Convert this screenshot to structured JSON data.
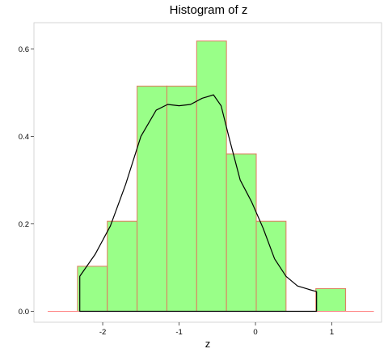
{
  "chart_data": {
    "type": "bar",
    "title": "Histogram of z",
    "xlabel": "z",
    "ylabel": "",
    "xlim": [
      -2.9,
      1.65
    ],
    "ylim": [
      -0.025,
      0.66
    ],
    "x_ticks": [
      -2,
      -1,
      0,
      1
    ],
    "y_ticks": [
      0.0,
      0.2,
      0.4,
      0.6
    ],
    "x_tick_labels": [
      "-2",
      "-1",
      "0",
      "1"
    ],
    "y_tick_labels": [
      "0.0",
      "0.2",
      "0.4",
      "0.6"
    ],
    "grid": false,
    "legend": "none",
    "colors": {
      "bar_fill": "#99ff88",
      "bar_outline": "#e07a5f",
      "baseline": "#ff8080",
      "density": "#000000",
      "panel_border": "#cccccc"
    },
    "bins": [
      {
        "x0": -2.33,
        "x1": -1.94,
        "density": 0.103
      },
      {
        "x0": -1.94,
        "x1": -1.55,
        "density": 0.206
      },
      {
        "x0": -1.55,
        "x1": -1.16,
        "density": 0.515
      },
      {
        "x0": -1.16,
        "x1": -0.77,
        "density": 0.515
      },
      {
        "x0": -0.77,
        "x1": -0.38,
        "density": 0.618
      },
      {
        "x0": -0.38,
        "x1": 0.01,
        "density": 0.36
      },
      {
        "x0": 0.01,
        "x1": 0.4,
        "density": 0.206
      },
      {
        "x0": 0.4,
        "x1": 0.79,
        "density": 0.0
      },
      {
        "x0": 0.79,
        "x1": 1.18,
        "density": 0.052
      }
    ],
    "baseline_range": [
      -2.72,
      1.55
    ],
    "density_curve": {
      "x": [
        -2.3,
        -2.1,
        -1.9,
        -1.7,
        -1.5,
        -1.3,
        -1.15,
        -1.0,
        -0.85,
        -0.7,
        -0.55,
        -0.45,
        -0.35,
        -0.2,
        -0.05,
        0.1,
        0.25,
        0.4,
        0.55,
        0.7,
        0.8
      ],
      "y": [
        0.08,
        0.13,
        0.195,
        0.29,
        0.4,
        0.46,
        0.473,
        0.47,
        0.473,
        0.487,
        0.495,
        0.47,
        0.4,
        0.3,
        0.25,
        0.19,
        0.12,
        0.08,
        0.058,
        0.05,
        0.045
      ]
    }
  }
}
